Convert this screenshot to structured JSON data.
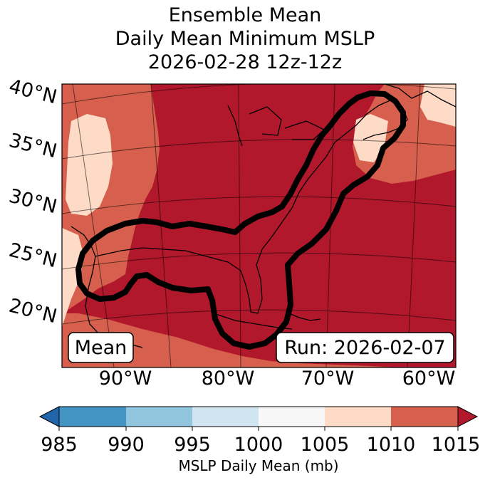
{
  "title": {
    "line1": "Ensemble Mean",
    "line2": "Daily Mean Minimum MSLP",
    "line3": "2026-02-28 12z-12z"
  },
  "map": {
    "latitude_labels": [
      "40°N",
      "35°N",
      "30°N",
      "25°N",
      "20°N"
    ],
    "longitude_labels": [
      "90°W",
      "80°W",
      "70°W",
      "60°W"
    ],
    "legend_left": "Mean",
    "legend_right": "Run: 2026-02-07",
    "field_colors": {
      "1005_1010": "#fddbc7",
      "1010_1015": "#d6604d",
      "above_1015": "#b2182b"
    },
    "contour_color": "#000000"
  },
  "colorbar": {
    "ticks": [
      "985",
      "990",
      "995",
      "1000",
      "1005",
      "1010",
      "1015"
    ],
    "label": "MSLP Daily Mean (mb)",
    "colors": [
      "#2166ac",
      "#4393c3",
      "#92c5de",
      "#d1e5f0",
      "#f7f7f7",
      "#fddbc7",
      "#d6604d",
      "#b2182b"
    ]
  }
}
